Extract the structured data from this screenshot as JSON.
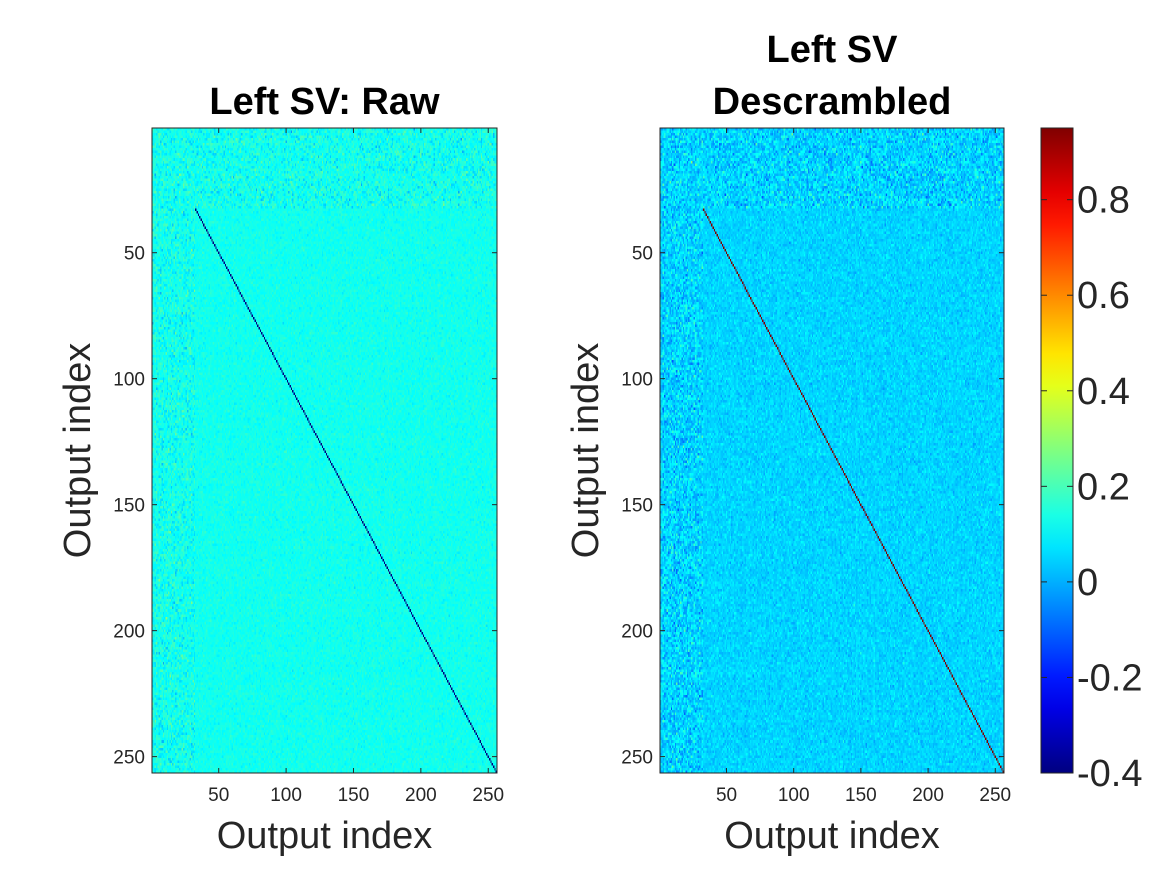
{
  "chart_data": [
    {
      "type": "heatmap",
      "title": "Left SV: Raw",
      "xlabel": "Output index",
      "ylabel": "Output index",
      "xlim": [
        1,
        256
      ],
      "ylim": [
        1,
        256
      ],
      "xticks": [
        50,
        100,
        150,
        200,
        250
      ],
      "yticks": [
        50,
        100,
        150,
        200,
        250
      ],
      "xtick_labels": [
        "50",
        "100",
        "150",
        "200",
        "250"
      ],
      "ytick_labels": [
        "50",
        "100",
        "150",
        "200",
        "250"
      ],
      "y_direction": "reversed",
      "matrix_description": {
        "background_value": 0.13,
        "noisy_header_rows": [
          1,
          32
        ],
        "noisy_left_columns": [
          1,
          32
        ],
        "diagonal_start": 33,
        "diagonal_end": 256,
        "diagonal_value": -0.4
      }
    },
    {
      "type": "heatmap",
      "title_lines": [
        "Left SV",
        "Descrambled"
      ],
      "xlabel": "Output index",
      "ylabel": "Output index",
      "xlim": [
        1,
        256
      ],
      "ylim": [
        1,
        256
      ],
      "xticks": [
        50,
        100,
        150,
        200,
        250
      ],
      "yticks": [
        50,
        100,
        150,
        200,
        250
      ],
      "xtick_labels": [
        "50",
        "100",
        "150",
        "200",
        "250"
      ],
      "ytick_labels": [
        "50",
        "100",
        "150",
        "200",
        "250"
      ],
      "y_direction": "reversed",
      "matrix_description": {
        "background_value": 0.05,
        "noisy_header_rows": [
          1,
          32
        ],
        "noisy_left_columns": [
          1,
          32
        ],
        "diagonal_start": 33,
        "diagonal_end": 256,
        "diagonal_value": 0.95
      }
    }
  ],
  "colorbar": {
    "colormap": "jet",
    "clim": [
      -0.4,
      0.95
    ],
    "ticks": [
      -0.4,
      -0.2,
      0,
      0.2,
      0.4,
      0.6,
      0.8
    ],
    "tick_labels": [
      "-0.4",
      "-0.2",
      "0",
      "0.2",
      "0.4",
      "0.6",
      "0.8"
    ]
  }
}
